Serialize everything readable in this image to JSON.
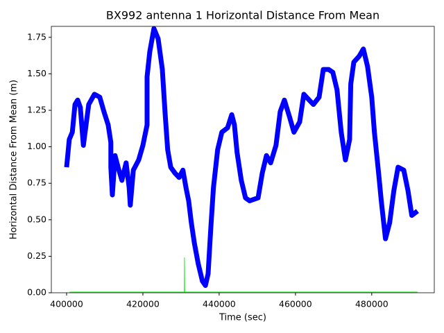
{
  "chart_data": {
    "type": "line",
    "title": "BX992 antenna 1 Horizontal Distance From Mean",
    "xlabel": "Time (sec)",
    "ylabel": "Horizontal Distance From Mean (m)",
    "xlim": [
      396000,
      496400
    ],
    "ylim": [
      0,
      1.825
    ],
    "xticks": [
      400000,
      420000,
      440000,
      460000,
      480000
    ],
    "yticks": [
      {
        "value": 0,
        "label": "0.00"
      },
      {
        "value": 0.25,
        "label": "0.25"
      },
      {
        "value": 0.5,
        "label": "0.50"
      },
      {
        "value": 0.75,
        "label": "0.75"
      },
      {
        "value": 1,
        "label": "1.00"
      },
      {
        "value": 1.25,
        "label": "1.25"
      },
      {
        "value": 1.5,
        "label": "1.50"
      },
      {
        "value": 1.75,
        "label": "1.75"
      }
    ],
    "series": [
      {
        "color": "#0000ff",
        "x": [
          400000,
          400700,
          401500,
          402200,
          402900,
          403600,
          404400,
          405100,
          405800,
          407300,
          408700,
          409800,
          410900,
          411600,
          411600,
          412000,
          412700,
          413500,
          414500,
          415600,
          416400,
          416700,
          417500,
          418900,
          420000,
          421100,
          421100,
          421800,
          422900,
          424000,
          425100,
          425800,
          426500,
          427300,
          428400,
          429500,
          430500,
          431300,
          432000,
          432700,
          433500,
          434500,
          435600,
          436400,
          437100,
          437800,
          438500,
          439600,
          440700,
          442200,
          443300,
          444000,
          444700,
          445800,
          446900,
          448000,
          450200,
          451300,
          452400,
          453500,
          454900,
          456000,
          457100,
          458500,
          459600,
          461100,
          462200,
          463600,
          464700,
          466200,
          467300,
          468700,
          469800,
          470900,
          472000,
          473100,
          474200,
          474500,
          475300,
          476700,
          477800,
          478900,
          480000,
          480700,
          481800,
          482500,
          483600,
          484700,
          485800,
          486900,
          488400,
          489500,
          490500,
          492000
        ],
        "values": [
          0.86,
          1.05,
          1.1,
          1.29,
          1.32,
          1.27,
          1.01,
          1.15,
          1.29,
          1.36,
          1.34,
          1.24,
          1.15,
          1.03,
          0.86,
          0.67,
          0.94,
          0.86,
          0.77,
          0.89,
          0.72,
          0.6,
          0.84,
          0.91,
          1.01,
          1.15,
          1.48,
          1.65,
          1.81,
          1.74,
          1.53,
          1.24,
          0.98,
          0.86,
          0.82,
          0.79,
          0.84,
          0.72,
          0.63,
          0.48,
          0.34,
          0.2,
          0.08,
          0.05,
          0.13,
          0.44,
          0.72,
          0.98,
          1.1,
          1.13,
          1.22,
          1.15,
          0.96,
          0.77,
          0.65,
          0.63,
          0.65,
          0.82,
          0.94,
          0.89,
          1.01,
          1.24,
          1.32,
          1.2,
          1.1,
          1.17,
          1.36,
          1.32,
          1.29,
          1.34,
          1.53,
          1.53,
          1.51,
          1.39,
          1.1,
          0.91,
          1.05,
          1.43,
          1.58,
          1.62,
          1.67,
          1.55,
          1.34,
          1.1,
          0.82,
          0.63,
          0.37,
          0.48,
          0.7,
          0.86,
          0.84,
          0.7,
          0.53,
          0.56
        ]
      },
      {
        "color": "#00ff00",
        "x": [
          400800,
          430850,
          430900,
          430950,
          492000
        ],
        "values": [
          0.005,
          0.005,
          0.24,
          0.005,
          0.005
        ]
      }
    ]
  }
}
